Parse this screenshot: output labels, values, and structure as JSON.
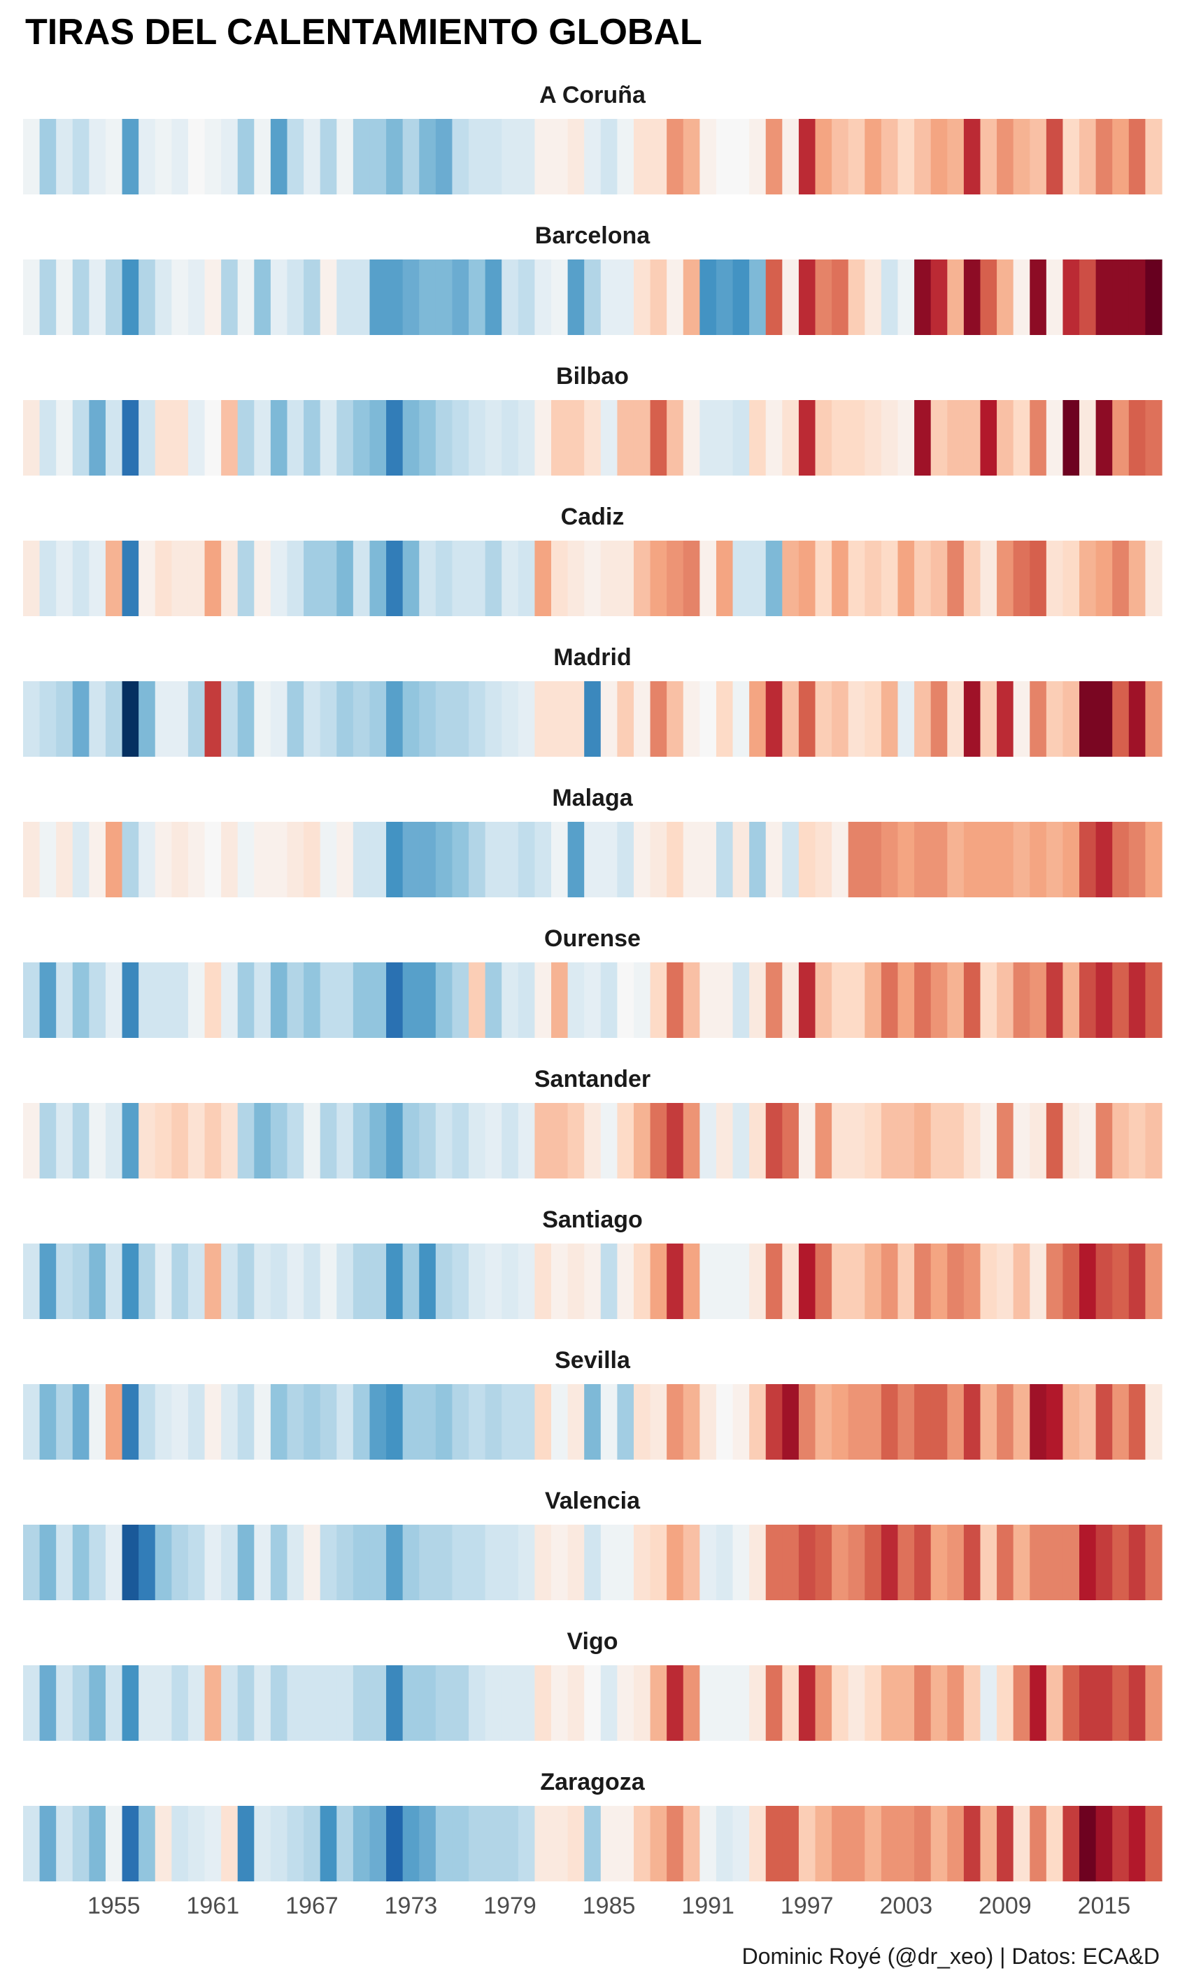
{
  "title": "TIRAS DEL CALENTAMIENTO GLOBAL",
  "caption": "Dominic Royé (@dr_xeo) | Datos: ECA&D",
  "chart_data": {
    "type": "heatmap",
    "title": "TIRAS DEL CALENTAMIENTO GLOBAL",
    "x_start": 1950,
    "x_end": 2018,
    "x_ticks": [
      1955,
      1961,
      1967,
      1973,
      1979,
      1985,
      1991,
      1997,
      2003,
      2009,
      2015
    ],
    "color_scale": "RdBu",
    "value_range": [
      -1,
      1
    ],
    "value_meaning": "relative temperature anomaly (negative = cooler/blue, positive = warmer/red)",
    "series": [
      {
        "name": "A Coruña",
        "values": [
          -0.05,
          -0.35,
          -0.15,
          -0.25,
          -0.1,
          -0.05,
          -0.55,
          -0.1,
          -0.05,
          -0.1,
          0,
          -0.05,
          -0.1,
          -0.35,
          -0.05,
          -0.55,
          -0.25,
          -0.1,
          -0.3,
          -0.05,
          -0.35,
          -0.35,
          -0.45,
          -0.3,
          -0.45,
          -0.5,
          -0.25,
          -0.2,
          -0.2,
          -0.15,
          -0.15,
          0.05,
          0.05,
          0.1,
          -0.1,
          -0.2,
          -0.05,
          0.15,
          0.15,
          0.45,
          0.35,
          0.05,
          0,
          0,
          0.05,
          0.45,
          0.05,
          0.75,
          0.4,
          0.3,
          0.25,
          0.4,
          0.3,
          0.2,
          0.3,
          0.4,
          0.35,
          0.75,
          0.3,
          0.45,
          0.35,
          0.3,
          0.65,
          0.2,
          0.3,
          0.5,
          0.4,
          0.55,
          0.25
        ]
      },
      {
        "name": "Barcelona",
        "values": [
          -0.05,
          -0.3,
          -0.05,
          -0.3,
          -0.1,
          -0.3,
          -0.6,
          -0.3,
          -0.15,
          -0.05,
          -0.1,
          0.05,
          -0.3,
          -0.05,
          -0.4,
          -0.1,
          -0.2,
          -0.3,
          0.05,
          -0.2,
          -0.2,
          -0.55,
          -0.55,
          -0.5,
          -0.45,
          -0.45,
          -0.5,
          -0.4,
          -0.55,
          -0.2,
          -0.25,
          -0.1,
          -0.05,
          -0.55,
          -0.3,
          -0.1,
          -0.1,
          0.15,
          0.25,
          0.05,
          0.35,
          -0.6,
          -0.55,
          -0.6,
          -0.45,
          0.6,
          0.05,
          0.75,
          0.5,
          0.55,
          0.25,
          0.1,
          -0.2,
          -0.05,
          0.9,
          0.75,
          0.35,
          0.9,
          0.6,
          0.35,
          0.05,
          0.9,
          0.05,
          0.75,
          0.65,
          0.9,
          0.9,
          0.9,
          1
        ]
      },
      {
        "name": "Bilbao",
        "values": [
          0.1,
          -0.2,
          -0.05,
          -0.25,
          -0.5,
          -0.2,
          -0.75,
          -0.2,
          0.15,
          0.15,
          -0.1,
          0,
          0.3,
          -0.3,
          -0.15,
          -0.45,
          -0.2,
          -0.35,
          -0.15,
          -0.3,
          -0.4,
          -0.45,
          -0.7,
          -0.45,
          -0.4,
          -0.3,
          -0.25,
          -0.2,
          -0.15,
          -0.2,
          -0.15,
          0.05,
          0.25,
          0.25,
          0.15,
          -0.1,
          0.3,
          0.3,
          0.6,
          0.3,
          0.05,
          -0.15,
          -0.15,
          -0.2,
          0.2,
          0.05,
          0.15,
          0.75,
          0.25,
          0.2,
          0.2,
          0.15,
          0.1,
          0.05,
          0.85,
          0.25,
          0.3,
          0.3,
          0.8,
          0.3,
          0.2,
          0.5,
          0.05,
          0.98,
          0.1,
          0.9,
          0.45,
          0.6,
          0.55
        ]
      },
      {
        "name": "Cadiz",
        "values": [
          0.1,
          -0.2,
          -0.1,
          -0.2,
          -0.1,
          0.35,
          -0.7,
          0.05,
          0.15,
          0.1,
          0.1,
          0.4,
          0.1,
          -0.3,
          0.05,
          -0.1,
          -0.2,
          -0.35,
          -0.35,
          -0.45,
          -0.2,
          -0.45,
          -0.7,
          -0.45,
          -0.2,
          -0.25,
          -0.2,
          -0.2,
          -0.3,
          -0.15,
          -0.2,
          0.4,
          0.15,
          0.1,
          0.05,
          0.1,
          0.1,
          0.3,
          0.4,
          0.45,
          0.5,
          0.05,
          0.4,
          -0.2,
          -0.2,
          -0.45,
          0.35,
          0.4,
          0.2,
          0.4,
          0.2,
          0.25,
          0.2,
          0.4,
          0.25,
          0.3,
          0.5,
          0.25,
          0.1,
          0.45,
          0.55,
          0.6,
          0.15,
          0.2,
          0.35,
          0.4,
          0.5,
          0.35,
          0.1
        ]
      },
      {
        "name": "Madrid",
        "values": [
          -0.2,
          -0.25,
          -0.3,
          -0.5,
          -0.2,
          -0.3,
          -1,
          -0.45,
          -0.1,
          -0.1,
          -0.3,
          0.7,
          -0.25,
          -0.4,
          -0.05,
          -0.1,
          -0.35,
          -0.2,
          -0.25,
          -0.35,
          -0.3,
          -0.35,
          -0.55,
          -0.4,
          -0.35,
          -0.3,
          -0.3,
          -0.25,
          -0.2,
          -0.15,
          -0.1,
          0.15,
          0.15,
          0.15,
          -0.65,
          0.05,
          0.25,
          0.05,
          0.5,
          0.3,
          0.05,
          0,
          0.2,
          -0.05,
          0.4,
          0.75,
          0.3,
          0.6,
          0.25,
          0.3,
          0.15,
          0.2,
          0.35,
          -0.1,
          0.3,
          0.5,
          0.15,
          0.85,
          0.25,
          0.75,
          0.05,
          0.5,
          0.25,
          0.3,
          0.95,
          0.95,
          0.6,
          0.85,
          0.45
        ]
      },
      {
        "name": "Malaga",
        "values": [
          0.1,
          -0.05,
          0.1,
          -0.15,
          0.05,
          0.4,
          -0.3,
          -0.1,
          0.05,
          0.1,
          0.05,
          0,
          0.1,
          -0.05,
          0.05,
          0.05,
          0.1,
          0.15,
          -0.05,
          0.05,
          -0.2,
          -0.2,
          -0.6,
          -0.5,
          -0.5,
          -0.45,
          -0.4,
          -0.3,
          -0.2,
          -0.2,
          -0.25,
          -0.2,
          -0.05,
          -0.55,
          -0.1,
          -0.1,
          -0.2,
          0.05,
          0.1,
          0.2,
          0.05,
          0.05,
          -0.25,
          0.1,
          -0.35,
          0.05,
          -0.2,
          0.2,
          0.15,
          0.05,
          0.5,
          0.5,
          0.45,
          0.4,
          0.45,
          0.45,
          0.35,
          0.4,
          0.4,
          0.4,
          0.35,
          0.4,
          0.35,
          0.4,
          0.65,
          0.75,
          0.55,
          0.5,
          0.4
        ]
      },
      {
        "name": "Ourense",
        "values": [
          -0.25,
          -0.55,
          -0.2,
          -0.4,
          -0.25,
          -0.1,
          -0.65,
          -0.2,
          -0.2,
          -0.2,
          -0.05,
          0.2,
          -0.1,
          -0.35,
          -0.2,
          -0.45,
          -0.3,
          -0.4,
          -0.25,
          -0.25,
          -0.4,
          -0.4,
          -0.75,
          -0.55,
          -0.55,
          -0.4,
          -0.3,
          0.25,
          -0.35,
          -0.15,
          -0.2,
          0.05,
          0.35,
          -0.15,
          -0.1,
          -0.2,
          0,
          -0.05,
          0.2,
          0.55,
          0.3,
          0.05,
          0.05,
          -0.2,
          0.1,
          0.5,
          0.1,
          0.75,
          0.3,
          0.2,
          0.2,
          0.35,
          0.55,
          0.4,
          0.55,
          0.45,
          0.35,
          0.6,
          0.2,
          0.3,
          0.5,
          0.45,
          0.7,
          0.35,
          0.65,
          0.75,
          0.6,
          0.75,
          0.6
        ]
      },
      {
        "name": "Santander",
        "values": [
          0.05,
          -0.3,
          -0.15,
          -0.3,
          -0.05,
          -0.15,
          -0.55,
          0.15,
          0.2,
          0.25,
          0.15,
          0.25,
          0.15,
          -0.3,
          -0.45,
          -0.35,
          -0.25,
          -0.05,
          -0.3,
          -0.2,
          -0.35,
          -0.45,
          -0.55,
          -0.35,
          -0.3,
          -0.2,
          -0.25,
          -0.15,
          -0.1,
          -0.2,
          -0.1,
          0.3,
          0.3,
          0.25,
          0.1,
          -0.05,
          0.2,
          0.35,
          0.55,
          0.7,
          0.45,
          -0.1,
          0.1,
          -0.15,
          0.15,
          0.65,
          0.55,
          0.05,
          0.45,
          0.15,
          0.15,
          0.2,
          0.3,
          0.3,
          0.35,
          0.25,
          0.25,
          0.15,
          0.05,
          0.5,
          0.05,
          0.1,
          0.6,
          0.1,
          0.05,
          0.5,
          0.3,
          0.25,
          0.3
        ]
      },
      {
        "name": "Santiago",
        "values": [
          -0.2,
          -0.55,
          -0.25,
          -0.3,
          -0.45,
          -0.2,
          -0.6,
          -0.3,
          -0.1,
          -0.3,
          -0.2,
          0.35,
          -0.2,
          -0.3,
          -0.15,
          -0.2,
          -0.1,
          -0.2,
          -0.05,
          -0.2,
          -0.3,
          -0.3,
          -0.6,
          -0.35,
          -0.6,
          -0.3,
          -0.25,
          -0.15,
          -0.1,
          -0.15,
          -0.1,
          0.15,
          0.05,
          0.1,
          0.05,
          -0.25,
          0.05,
          0.2,
          0.4,
          0.75,
          0.4,
          -0.05,
          -0.05,
          -0.05,
          0.1,
          0.55,
          0.15,
          0.8,
          0.55,
          0.25,
          0.25,
          0.35,
          0.45,
          0.25,
          0.5,
          0.4,
          0.5,
          0.45,
          0.2,
          0.15,
          0.3,
          0.1,
          0.5,
          0.6,
          0.8,
          0.65,
          0.6,
          0.7,
          0.45
        ]
      },
      {
        "name": "Sevilla",
        "values": [
          -0.2,
          -0.45,
          -0.3,
          -0.5,
          -0.05,
          0.4,
          -0.7,
          -0.25,
          -0.15,
          -0.1,
          -0.2,
          0.05,
          -0.15,
          -0.25,
          -0.05,
          -0.4,
          -0.3,
          -0.35,
          -0.3,
          -0.2,
          -0.35,
          -0.55,
          -0.6,
          -0.35,
          -0.35,
          -0.4,
          -0.3,
          -0.25,
          -0.3,
          -0.25,
          -0.25,
          0.2,
          -0.05,
          0.1,
          -0.45,
          -0.05,
          -0.35,
          0.15,
          0.1,
          0.45,
          0.35,
          0.1,
          0,
          0.05,
          0.25,
          0.7,
          0.85,
          0.5,
          0.35,
          0.4,
          0.45,
          0.45,
          0.6,
          0.5,
          0.6,
          0.6,
          0.45,
          0.7,
          0.35,
          0.5,
          0.35,
          0.85,
          0.8,
          0.35,
          0.3,
          0.65,
          0.45,
          0.6,
          0.1
        ]
      },
      {
        "name": "Valencia",
        "values": [
          -0.3,
          -0.45,
          -0.2,
          -0.4,
          -0.25,
          -0.1,
          -0.85,
          -0.7,
          -0.4,
          -0.3,
          -0.25,
          -0.1,
          -0.2,
          -0.45,
          -0.1,
          -0.35,
          -0.15,
          0.05,
          -0.25,
          -0.3,
          -0.35,
          -0.35,
          -0.55,
          -0.35,
          -0.3,
          -0.3,
          -0.25,
          -0.25,
          -0.2,
          -0.2,
          -0.15,
          0.1,
          0.05,
          0.1,
          -0.2,
          -0.05,
          -0.05,
          0.15,
          0.2,
          0.4,
          0.3,
          -0.1,
          -0.15,
          -0.05,
          0.1,
          0.55,
          0.55,
          0.65,
          0.6,
          0.45,
          0.5,
          0.6,
          0.75,
          0.55,
          0.65,
          0.4,
          0.45,
          0.65,
          0.25,
          0.55,
          0.35,
          0.5,
          0.5,
          0.5,
          0.8,
          0.7,
          0.6,
          0.7,
          0.55
        ]
      },
      {
        "name": "Vigo",
        "values": [
          -0.2,
          -0.5,
          -0.2,
          -0.3,
          -0.45,
          -0.2,
          -0.6,
          -0.15,
          -0.15,
          -0.25,
          -0.15,
          0.35,
          -0.2,
          -0.3,
          -0.15,
          -0.3,
          -0.2,
          -0.2,
          -0.2,
          -0.2,
          -0.3,
          -0.3,
          -0.65,
          -0.35,
          -0.35,
          -0.3,
          -0.3,
          -0.2,
          -0.15,
          -0.15,
          -0.15,
          0.15,
          0.05,
          0.1,
          0,
          -0.15,
          0.05,
          0.1,
          0.35,
          0.75,
          0.45,
          -0.05,
          -0.05,
          -0.05,
          0.1,
          0.55,
          0.2,
          0.75,
          0.45,
          0.2,
          0.1,
          0.2,
          0.35,
          0.35,
          0.5,
          0.35,
          0.45,
          0.25,
          -0.1,
          0.2,
          0.5,
          0.8,
          0.3,
          0.6,
          0.7,
          0.7,
          0.6,
          0.7,
          0.45
        ]
      },
      {
        "name": "Zaragoza",
        "values": [
          -0.2,
          -0.5,
          -0.2,
          -0.3,
          -0.45,
          -0.05,
          -0.75,
          -0.4,
          0.1,
          -0.2,
          -0.15,
          -0.1,
          0.15,
          -0.65,
          -0.15,
          -0.2,
          -0.25,
          -0.3,
          -0.6,
          -0.3,
          -0.45,
          -0.5,
          -0.8,
          -0.55,
          -0.5,
          -0.35,
          -0.35,
          -0.3,
          -0.3,
          -0.3,
          -0.25,
          0.1,
          0.1,
          0.15,
          -0.35,
          0.05,
          0.05,
          0.25,
          0.35,
          0.5,
          0.3,
          -0.05,
          -0.15,
          -0.1,
          0.15,
          0.6,
          0.6,
          0.25,
          0.35,
          0.45,
          0.45,
          0.35,
          0.45,
          0.45,
          0.5,
          0.35,
          0.45,
          0.7,
          0.35,
          0.7,
          0.15,
          0.5,
          0.2,
          0.7,
          0.98,
          0.85,
          0.7,
          0.8,
          0.6
        ]
      }
    ]
  }
}
